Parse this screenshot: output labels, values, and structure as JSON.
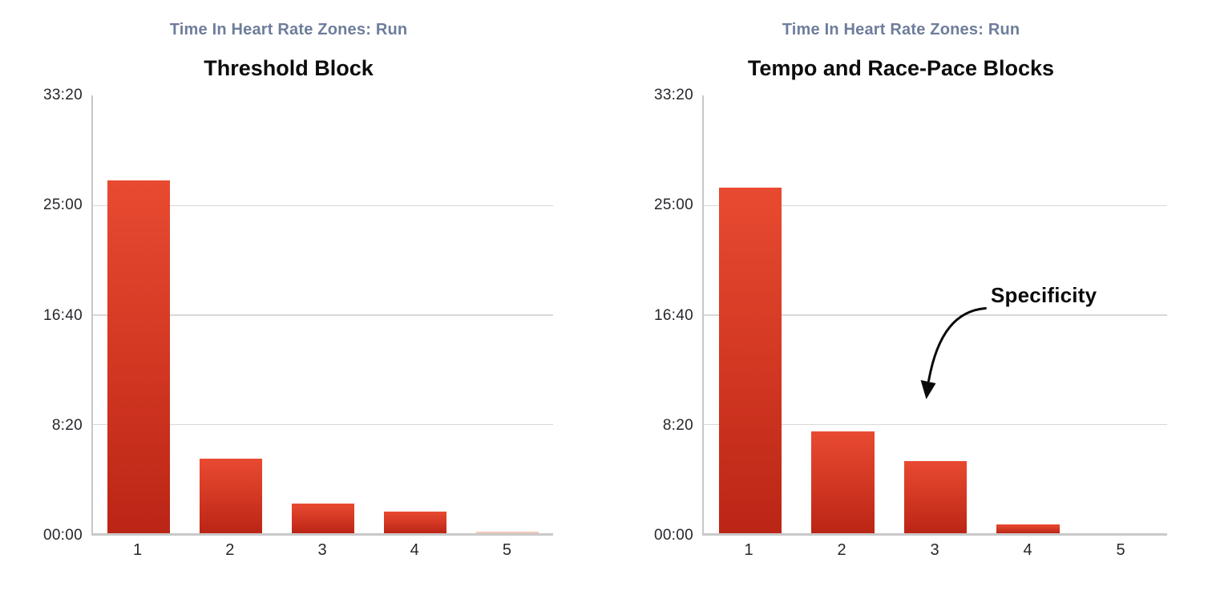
{
  "page_background": "#ffffff",
  "colors": {
    "subtitle_text": "#6e7d9b",
    "title_text": "#0c0c0e",
    "tick_text": "#25272c",
    "gridline": "#d8d8d8",
    "axis_line": "#c9c9c9",
    "bar_gradient_top": "#e84a31",
    "bar_gradient_bottom": "#bb2516",
    "annotation_text": "#0a0a0a"
  },
  "chart_data": [
    {
      "type": "bar",
      "subtitle": "Time In Heart Rate Zones: Run",
      "title": "Threshold Block",
      "xlabel": "",
      "ylabel": "",
      "categories": [
        "1",
        "2",
        "3",
        "4",
        "5"
      ],
      "values_seconds": [
        1610,
        340,
        135,
        100,
        5
      ],
      "values_display": [
        "26:50",
        "5:40",
        "2:15",
        "1:40",
        "0:05"
      ],
      "y_tick_labels": [
        "33:20",
        "25:00",
        "16:40",
        "8:20",
        "00:00"
      ],
      "y_tick_seconds": [
        2000,
        1500,
        1000,
        500,
        0
      ],
      "gridline_seconds": [
        1500,
        1000,
        500
      ],
      "ylim_seconds": [
        0,
        2000
      ],
      "grid": "horizontal",
      "legend": "none"
    },
    {
      "type": "bar",
      "subtitle": "Time In Heart Rate Zones: Run",
      "title": "Tempo and Race-Pace Blocks",
      "xlabel": "",
      "ylabel": "",
      "categories": [
        "1",
        "2",
        "3",
        "4",
        "5"
      ],
      "values_seconds": [
        1580,
        465,
        330,
        40,
        0
      ],
      "values_display": [
        "26:20",
        "7:45",
        "5:30",
        "0:40",
        "0:00"
      ],
      "y_tick_labels": [
        "33:20",
        "25:00",
        "16:40",
        "8:20",
        "00:00"
      ],
      "y_tick_seconds": [
        2000,
        1500,
        1000,
        500,
        0
      ],
      "gridline_seconds": [
        1500,
        1000,
        500
      ],
      "ylim_seconds": [
        0,
        2000
      ],
      "grid": "horizontal",
      "legend": "none",
      "annotation": {
        "label": "Specificity",
        "arrow": "curved arrow pointing down-left toward zone 3 bar"
      }
    }
  ]
}
